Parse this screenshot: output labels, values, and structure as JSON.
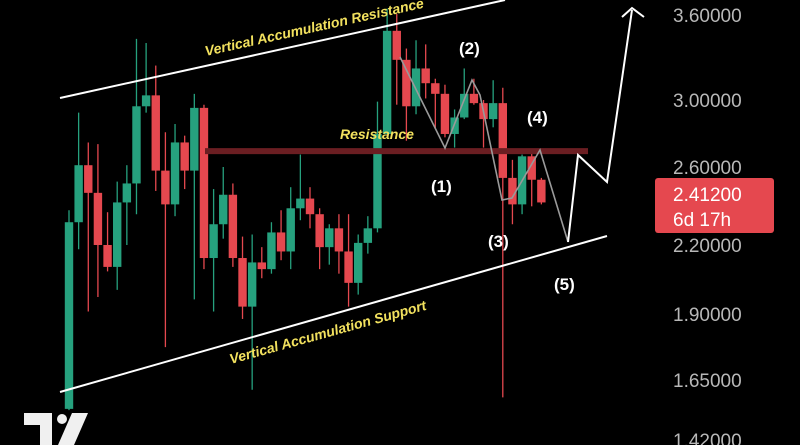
{
  "chart_data": {
    "type": "candlestick",
    "title": "",
    "colors": {
      "up": "#26a17e",
      "down": "#e5484f",
      "background": "#000000",
      "resistance_line": "#6b1e22",
      "channel": "#ffffff",
      "projection": "#9a9a9a",
      "annotation": "#f2e15e",
      "price_tag": "#e5484f"
    },
    "y_axis": {
      "scale": "log",
      "ticks": [
        3.6,
        3.0,
        2.6,
        2.2,
        1.9,
        1.65,
        1.42
      ],
      "tick_labels": [
        "3.60000",
        "3.00000",
        "2.60000",
        "2.20000",
        "1.90000",
        "1.65000",
        "1.42000"
      ]
    },
    "grid": false,
    "candles": [
      [
        1.535,
        2.37,
        1.53,
        2.31
      ],
      [
        2.31,
        2.92,
        2.18,
        2.61
      ],
      [
        2.61,
        2.74,
        1.91,
        2.46
      ],
      [
        2.46,
        2.73,
        1.97,
        2.2
      ],
      [
        2.2,
        2.36,
        2.08,
        2.1
      ],
      [
        2.1,
        2.52,
        2.0,
        2.41
      ],
      [
        2.41,
        2.61,
        2.2,
        2.51
      ],
      [
        2.51,
        3.42,
        2.35,
        2.96
      ],
      [
        2.96,
        3.39,
        2.92,
        3.03
      ],
      [
        3.03,
        3.23,
        2.47,
        2.58
      ],
      [
        2.58,
        2.8,
        1.77,
        2.4
      ],
      [
        2.4,
        2.85,
        2.34,
        2.74
      ],
      [
        2.74,
        2.78,
        2.48,
        2.58
      ],
      [
        2.58,
        3.04,
        1.96,
        2.95
      ],
      [
        2.95,
        2.97,
        2.09,
        2.14
      ],
      [
        2.14,
        2.48,
        1.91,
        2.3
      ],
      [
        2.3,
        2.6,
        2.23,
        2.45
      ],
      [
        2.45,
        2.51,
        2.1,
        2.14
      ],
      [
        2.14,
        2.24,
        1.88,
        1.93
      ],
      [
        1.93,
        2.25,
        1.61,
        2.12
      ],
      [
        2.12,
        2.19,
        2.05,
        2.09
      ],
      [
        2.09,
        2.31,
        2.07,
        2.26
      ],
      [
        2.26,
        2.37,
        2.13,
        2.17
      ],
      [
        2.17,
        2.49,
        2.09,
        2.38
      ],
      [
        2.38,
        2.67,
        2.32,
        2.43
      ],
      [
        2.43,
        2.49,
        2.28,
        2.35
      ],
      [
        2.35,
        2.38,
        2.09,
        2.19
      ],
      [
        2.19,
        2.3,
        2.11,
        2.28
      ],
      [
        2.28,
        2.35,
        2.07,
        2.17
      ],
      [
        2.17,
        2.35,
        1.93,
        2.03
      ],
      [
        2.03,
        2.25,
        1.98,
        2.21
      ],
      [
        2.21,
        2.34,
        2.16,
        2.28
      ],
      [
        2.28,
        2.99,
        2.26,
        2.79
      ],
      [
        2.79,
        3.65,
        2.79,
        3.48
      ],
      [
        3.48,
        3.61,
        2.97,
        3.27
      ],
      [
        3.27,
        3.35,
        2.75,
        2.96
      ],
      [
        2.96,
        3.41,
        2.91,
        3.21
      ],
      [
        3.21,
        3.38,
        3.01,
        3.11
      ],
      [
        3.11,
        3.14,
        2.82,
        3.04
      ],
      [
        3.04,
        3.1,
        2.77,
        2.79
      ],
      [
        2.79,
        2.94,
        2.71,
        2.89
      ],
      [
        2.89,
        3.21,
        2.88,
        3.04
      ],
      [
        3.04,
        3.14,
        2.97,
        2.98
      ],
      [
        2.98,
        3.0,
        2.71,
        2.88
      ],
      [
        2.88,
        3.13,
        2.83,
        2.98
      ],
      [
        2.98,
        3.08,
        1.58,
        2.54
      ],
      [
        2.54,
        2.64,
        2.3,
        2.4
      ],
      [
        2.4,
        2.67,
        2.35,
        2.66
      ],
      [
        2.66,
        2.7,
        2.39,
        2.53
      ],
      [
        2.53,
        2.54,
        2.4,
        2.41
      ]
    ],
    "candle_format": [
      "open",
      "high",
      "low",
      "close"
    ],
    "resistance_level": 2.69,
    "annotations": {
      "upper_channel": "Vertical Accumulation Resistance",
      "lower_channel": "Vertical Accumulation Support",
      "resistance": "Resistance",
      "waves": [
        "(1)",
        "(2)",
        "(3)",
        "(4)",
        "(5)"
      ]
    },
    "last_price": {
      "value": "2.41200",
      "countdown": "6d 17h"
    }
  }
}
